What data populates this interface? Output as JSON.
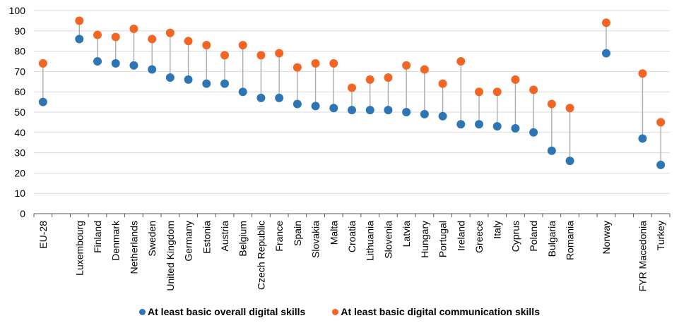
{
  "chart_data": {
    "type": "scatter",
    "subtype": "dumbbell",
    "title": "",
    "xlabel": "",
    "ylabel": "",
    "ylim": [
      0,
      100
    ],
    "yticks": [
      "0",
      "10",
      "20",
      "30",
      "40",
      "50",
      "60",
      "70",
      "80",
      "90",
      "100"
    ],
    "grid": true,
    "legend_position": "bottom",
    "categories": [
      "EU-28",
      "",
      "Luxembourg",
      "Finland",
      "Denmark",
      "Netherlands",
      "Sweden",
      "United Kingdom",
      "Germany",
      "Estonia",
      "Austria",
      "Belgium",
      "Czech Republic",
      "France",
      "Spain",
      "Slovakia",
      "Malta",
      "Croatia",
      "Lithuania",
      "Slovenia",
      "Latvia",
      "Hungary",
      "Portugal",
      "Ireland",
      "Greece",
      "Italy",
      "Cyprus",
      "Poland",
      "Bulgaria",
      "Romania",
      "",
      "Norway",
      "",
      "FYR Macedonia",
      "Turkey"
    ],
    "series": [
      {
        "name": "At least basic overall digital skills",
        "color": "#2E75B6",
        "values": [
          55,
          null,
          86,
          75,
          74,
          73,
          71,
          67,
          66,
          64,
          64,
          60,
          57,
          57,
          54,
          53,
          52,
          51,
          51,
          51,
          50,
          49,
          48,
          44,
          44,
          43,
          42,
          40,
          31,
          26,
          null,
          79,
          null,
          37,
          24
        ]
      },
      {
        "name": "At least basic digital communication skills",
        "color": "#F26522",
        "values": [
          74,
          null,
          95,
          88,
          87,
          91,
          86,
          89,
          85,
          83,
          78,
          83,
          78,
          79,
          72,
          74,
          74,
          62,
          66,
          67,
          73,
          71,
          64,
          75,
          60,
          60,
          66,
          61,
          54,
          52,
          null,
          94,
          null,
          69,
          45
        ]
      }
    ]
  }
}
